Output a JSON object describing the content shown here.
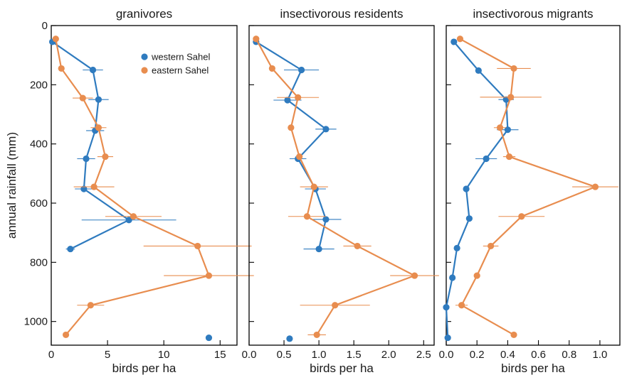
{
  "chart_data": [
    {
      "type": "line",
      "title": "granivores",
      "xlabel": "birds per ha",
      "ylabel": "annual rainfall (mm)",
      "xlim": [
        0,
        16.5
      ],
      "ylim": [
        1080,
        0
      ],
      "x_ticks": [
        0,
        5,
        10,
        15
      ],
      "x_tick_labels": [
        "0",
        "5",
        "10",
        "15"
      ],
      "y_ticks": [
        0,
        200,
        400,
        600,
        800,
        1000
      ],
      "y_tick_labels": [
        "0",
        "200",
        "400",
        "600",
        "800",
        "1000"
      ],
      "legend": {
        "position": "top-right",
        "entries": [
          "western Sahel",
          "eastern Sahel"
        ]
      },
      "series": [
        {
          "name": "western Sahel",
          "color": "#2f7bbf",
          "points": [
            {
              "x": 0.1,
              "y": 55
            },
            {
              "x": 3.7,
              "y": 150,
              "err": 0.9
            },
            {
              "x": 4.2,
              "y": 250,
              "err": 0.9
            },
            {
              "x": 3.9,
              "y": 355,
              "err": 0.8
            },
            {
              "x": 3.1,
              "y": 450,
              "err": 0.8
            },
            {
              "x": 2.9,
              "y": 552,
              "err": 0.8
            },
            {
              "x": 6.9,
              "y": 657,
              "err": 4.2
            },
            {
              "x": 1.7,
              "y": 755,
              "err": 0.4
            }
          ],
          "unconnected": [
            {
              "x": 14.0,
              "y": 1055
            }
          ]
        },
        {
          "name": "eastern Sahel",
          "color": "#e88d4f",
          "points": [
            {
              "x": 0.4,
              "y": 45
            },
            {
              "x": 0.9,
              "y": 145
            },
            {
              "x": 2.8,
              "y": 245,
              "err": 0.9
            },
            {
              "x": 4.2,
              "y": 345,
              "err": 0.7
            },
            {
              "x": 4.8,
              "y": 443,
              "err": 0.7
            },
            {
              "x": 3.8,
              "y": 545,
              "err": 1.8
            },
            {
              "x": 7.3,
              "y": 645,
              "err": 2.5
            },
            {
              "x": 13.0,
              "y": 745,
              "err": 4.8
            },
            {
              "x": 14.0,
              "y": 845,
              "err": 4.0
            },
            {
              "x": 3.5,
              "y": 945,
              "err": 1.2
            },
            {
              "x": 1.3,
              "y": 1045
            }
          ]
        }
      ]
    },
    {
      "type": "line",
      "title": "insectivorous residents",
      "xlabel": "birds per ha",
      "xlim": [
        0,
        2.65
      ],
      "ylim": [
        1080,
        0
      ],
      "x_ticks": [
        0,
        0.5,
        1.0,
        1.5,
        2.0,
        2.5
      ],
      "x_tick_labels": [
        "0.0",
        "0.5",
        "1.0",
        "1.5",
        "2.0",
        "2.5"
      ],
      "y_ticks": [
        0,
        200,
        400,
        600,
        800,
        1000
      ],
      "series": [
        {
          "name": "western Sahel",
          "color": "#2f7bbf",
          "points": [
            {
              "x": 0.1,
              "y": 55
            },
            {
              "x": 0.75,
              "y": 150,
              "err": 0.25
            },
            {
              "x": 0.55,
              "y": 252,
              "err": 0.2
            },
            {
              "x": 1.1,
              "y": 350,
              "err": 0.15
            },
            {
              "x": 0.7,
              "y": 450,
              "err": 0.12
            },
            {
              "x": 0.95,
              "y": 552,
              "err": 0.15
            },
            {
              "x": 1.1,
              "y": 655,
              "err": 0.22
            },
            {
              "x": 1.0,
              "y": 755,
              "err": 0.22
            }
          ],
          "unconnected": [
            {
              "x": 0.58,
              "y": 1058
            }
          ]
        },
        {
          "name": "eastern Sahel",
          "color": "#e88d4f",
          "points": [
            {
              "x": 0.1,
              "y": 45
            },
            {
              "x": 0.33,
              "y": 145
            },
            {
              "x": 0.7,
              "y": 243,
              "err": 0.3
            },
            {
              "x": 0.6,
              "y": 345
            },
            {
              "x": 0.72,
              "y": 443
            },
            {
              "x": 0.93,
              "y": 545,
              "err": 0.2
            },
            {
              "x": 0.83,
              "y": 645,
              "err": 0.27
            },
            {
              "x": 1.55,
              "y": 745,
              "err": 0.2
            },
            {
              "x": 2.37,
              "y": 845,
              "err": 0.35
            },
            {
              "x": 1.23,
              "y": 945,
              "err": 0.5
            },
            {
              "x": 0.97,
              "y": 1045,
              "err": 0.13
            }
          ]
        }
      ]
    },
    {
      "type": "line",
      "title": "insectivorous migrants",
      "xlabel": "birds per ha",
      "xlim": [
        0,
        1.13
      ],
      "ylim": [
        1080,
        0
      ],
      "x_ticks": [
        0,
        0.2,
        0.4,
        0.6,
        0.8,
        1.0
      ],
      "x_tick_labels": [
        "0.0",
        "0.2",
        "0.4",
        "0.6",
        "0.8",
        "1.0"
      ],
      "y_ticks": [
        0,
        200,
        400,
        600,
        800,
        1000
      ],
      "series": [
        {
          "name": "western Sahel",
          "color": "#2f7bbf",
          "points": [
            {
              "x": 0.05,
              "y": 55
            },
            {
              "x": 0.21,
              "y": 152
            },
            {
              "x": 0.39,
              "y": 250,
              "err": 0.05
            },
            {
              "x": 0.4,
              "y": 352,
              "err": 0.07
            },
            {
              "x": 0.26,
              "y": 450,
              "err": 0.07
            },
            {
              "x": 0.13,
              "y": 552
            },
            {
              "x": 0.15,
              "y": 652
            },
            {
              "x": 0.07,
              "y": 752
            },
            {
              "x": 0.04,
              "y": 852
            },
            {
              "x": 0.0,
              "y": 952
            },
            {
              "x": 0.01,
              "y": 1055
            }
          ]
        },
        {
          "name": "eastern Sahel",
          "color": "#e88d4f",
          "points": [
            {
              "x": 0.09,
              "y": 45
            },
            {
              "x": 0.44,
              "y": 145,
              "err": 0.11
            },
            {
              "x": 0.42,
              "y": 242,
              "err": 0.2
            },
            {
              "x": 0.35,
              "y": 345,
              "err": 0.04
            },
            {
              "x": 0.41,
              "y": 443,
              "err": 0.04
            },
            {
              "x": 0.97,
              "y": 545,
              "err": 0.15
            },
            {
              "x": 0.49,
              "y": 645,
              "err": 0.15
            },
            {
              "x": 0.29,
              "y": 745,
              "err": 0.05
            },
            {
              "x": 0.2,
              "y": 845
            },
            {
              "x": 0.1,
              "y": 945,
              "err": 0.04
            },
            {
              "x": 0.44,
              "y": 1045
            }
          ]
        }
      ]
    }
  ]
}
